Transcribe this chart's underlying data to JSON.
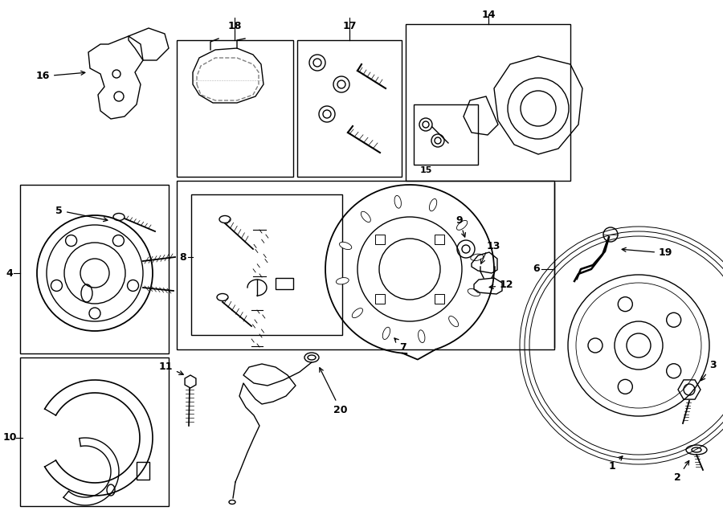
{
  "bg_color": "#ffffff",
  "lc": "#000000",
  "fig_w": 9.0,
  "fig_h": 6.61,
  "dpi": 100,
  "xlim": [
    0,
    900
  ],
  "ylim": [
    0,
    661
  ]
}
